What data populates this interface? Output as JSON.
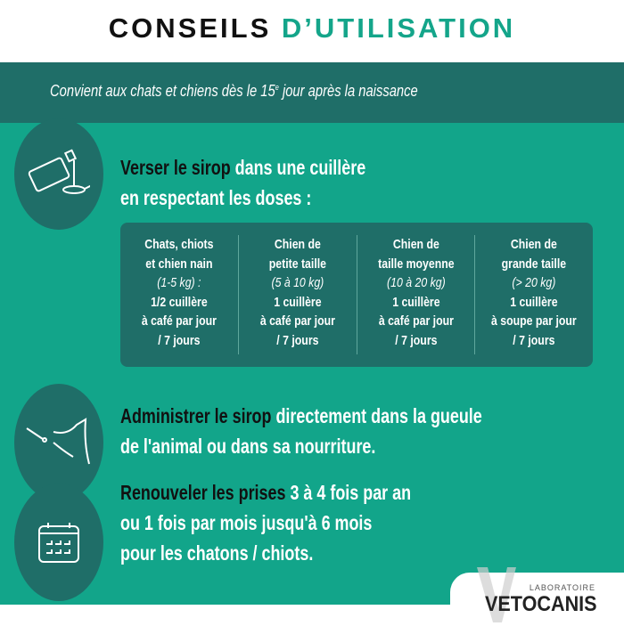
{
  "header": {
    "title_part1": "CONSEILS",
    "title_part2": "D’UTILISATION"
  },
  "band": {
    "text_before": "Convient aux chats et chiens dès le 15",
    "sup": "e",
    "text_after": " jour après la naissance"
  },
  "steps": [
    {
      "icon": "pour-syrup-spoon-icon",
      "bold": "Verser le sirop",
      "rest1": " dans une cuillère",
      "line2": "en respectant les doses :"
    },
    {
      "icon": "animal-mouth-dropper-icon",
      "bold": "Administrer le sirop",
      "rest1": " directement dans la gueule",
      "line2": "de l'animal ou dans sa nourriture."
    },
    {
      "icon": "calendar-icon",
      "bold": "Renouveler les prises",
      "rest1": " 3 à 4 fois par an",
      "line2": "ou 1 fois par mois jusqu'à 6 mois",
      "line3": "pour les chatons / chiots."
    }
  ],
  "doses": [
    {
      "l1": "Chats, chiots",
      "l2": "et chien nain",
      "w": "(1-5 kg) :",
      "d1": "1/2 cuillère",
      "d2": "à café par jour",
      "d3": "/ 7 jours"
    },
    {
      "l1": "Chien de",
      "l2": "petite taille",
      "w": "(5 à 10 kg)",
      "d1": "1 cuillère",
      "d2": "à café par jour",
      "d3": "/ 7 jours"
    },
    {
      "l1": "Chien de",
      "l2": "taille moyenne",
      "w": "(10 à 20 kg)",
      "d1": "1 cuillère",
      "d2": "à café par jour",
      "d3": "/ 7 jours"
    },
    {
      "l1": "Chien de",
      "l2": "grande taille",
      "w": "(> 20 kg)",
      "d1": "1 cuillère",
      "d2": "à soupe par jour",
      "d3": "/ 7 jours"
    }
  ],
  "logo": {
    "label": "LABORATOIRE",
    "name": "VETOCANIS"
  },
  "colors": {
    "green": "#12a58a",
    "dark_teal": "#1f6e68"
  }
}
